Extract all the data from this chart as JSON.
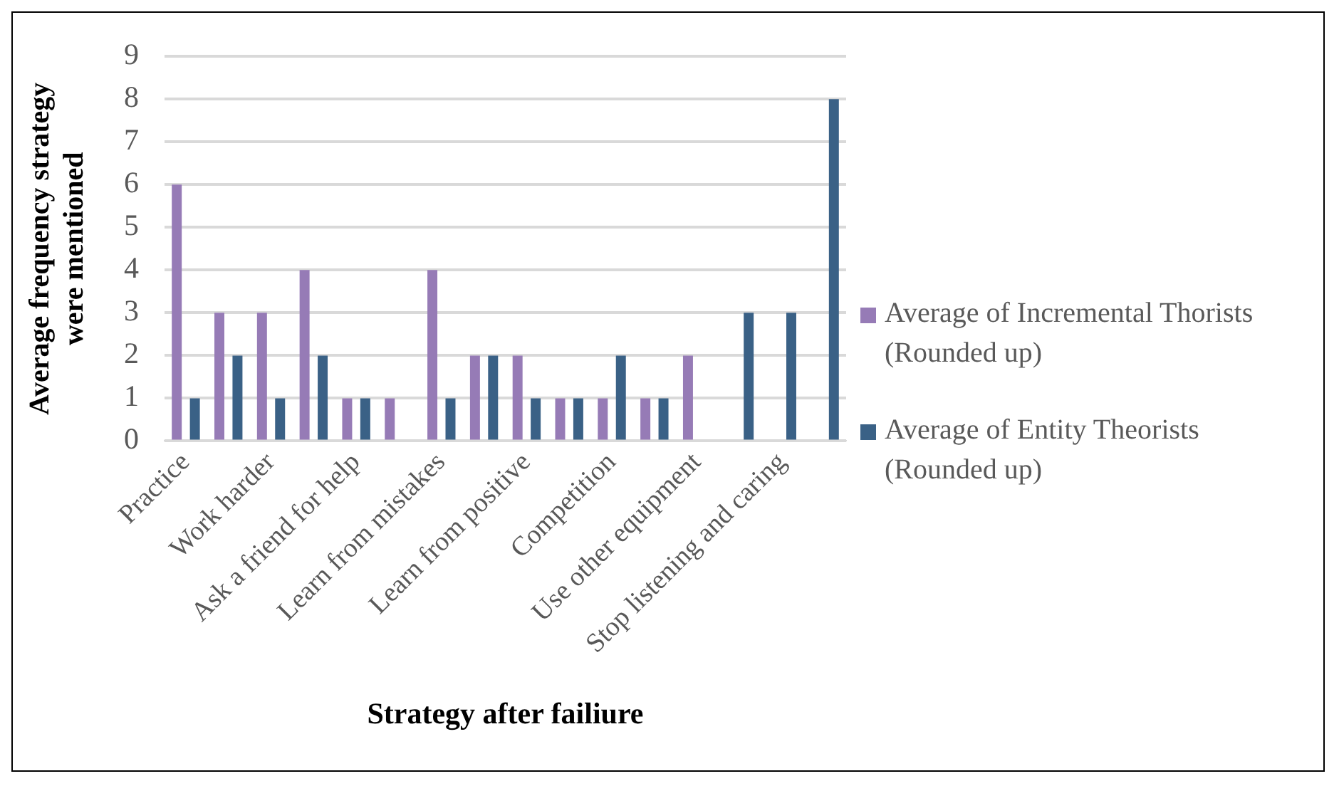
{
  "chart_data": {
    "type": "bar",
    "xlabel": "Strategy after failiure",
    "ylabel": "Average frequency strategy were mentioned",
    "categories": [
      "Practice",
      null,
      "Work harder",
      null,
      "Ask a friend for help",
      null,
      "Learn from mistakes",
      null,
      "Learn from positive",
      null,
      "Competition",
      null,
      "Use other equipment",
      null,
      "Stop listening and caring",
      null
    ],
    "series": [
      {
        "name": "Average of Incremental Thorists (Rounded up)",
        "color": "#967bb6",
        "values": [
          6,
          3,
          3,
          4,
          1,
          1,
          4,
          2,
          2,
          1,
          1,
          1,
          2,
          null,
          null,
          null
        ]
      },
      {
        "name": "Average of Entity Theorists (Rounded up)",
        "color": "#3a6186",
        "values": [
          1,
          2,
          1,
          2,
          1,
          null,
          1,
          2,
          1,
          1,
          2,
          1,
          null,
          3,
          3,
          8
        ]
      }
    ],
    "ylim": [
      0,
      9
    ],
    "yticks": [
      0,
      1,
      2,
      3,
      4,
      5,
      6,
      7,
      8,
      9
    ],
    "grid": "y",
    "legend": "right"
  }
}
